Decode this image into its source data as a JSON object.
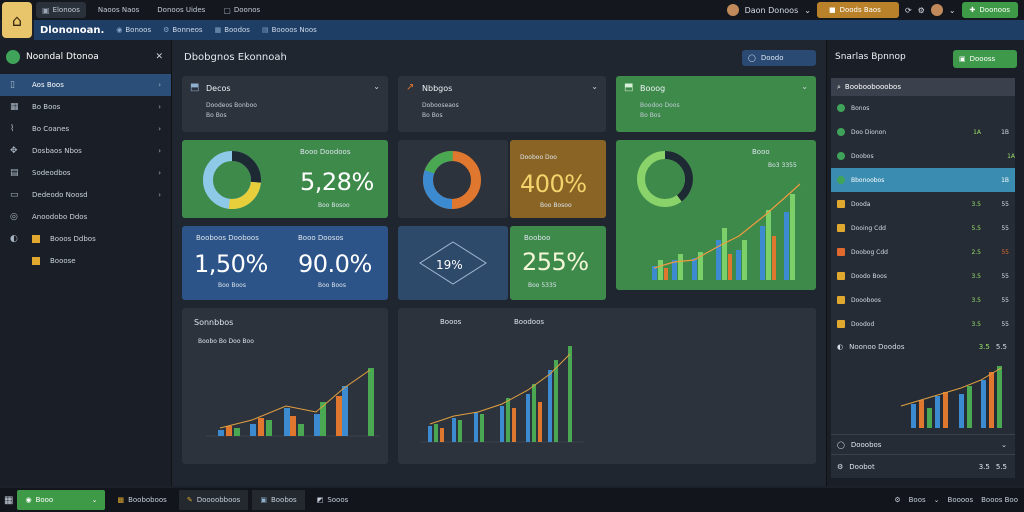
{
  "topbar": {
    "tabs": [
      {
        "label": "Elonoos",
        "icon": "window-icon"
      },
      {
        "label": "Naoos Naos",
        "icon": "doc-icon"
      },
      {
        "label": "Donoos Uides",
        "icon": "doc-icon"
      },
      {
        "label": "Doonos",
        "icon": "doc-icon"
      }
    ],
    "user": "Daon Donoos",
    "amber_label": "Doods Baos",
    "green_label": "Doonoos"
  },
  "header": {
    "brand": "Dlononoan.",
    "items": [
      "Bonoos",
      "Bonneos",
      "Boodos",
      "Boooos Noos"
    ]
  },
  "sidebar": {
    "title": "Noondal Dtonoa",
    "items": [
      {
        "label": "Aos Boos",
        "icon": "tablet-icon",
        "active": true
      },
      {
        "label": "Bo Boos",
        "icon": "grid-icon"
      },
      {
        "label": "Bo Coanes",
        "icon": "chart-icon"
      },
      {
        "label": "Dosbaos Nbos",
        "icon": "puzzle-icon"
      },
      {
        "label": "Sodeodbos",
        "icon": "doc-icon"
      },
      {
        "label": "Dedeodo Noosd",
        "icon": "folder-icon"
      },
      {
        "label": "Anoodobo Ddos",
        "icon": "settings-icon"
      },
      {
        "label": "Booos Ddbos",
        "icon": "globe-icon"
      },
      {
        "label": "Booose",
        "icon": ""
      }
    ]
  },
  "main": {
    "title": "Dbobgnos Ekonnoah",
    "button": "Doodo",
    "cards": {
      "c1": {
        "title": "Decos",
        "sub1": "Doodeos Bonboo",
        "sub2": "Bo Bos"
      },
      "c2": {
        "title": "Nbbgos",
        "sub1": "Dobooseaos",
        "sub2": "Bo Bos"
      },
      "c3": {
        "title": "Booog",
        "sub1": "Boodoo Doos",
        "sub2": "Bo Bos"
      },
      "k1": {
        "title": "Booo Doodoos",
        "value": "5,28%",
        "sub": "Boo Bosoo"
      },
      "k2": {
        "title": "Dooboo Doo",
        "value": "400%",
        "sub": "Boo Bosoo"
      },
      "k3": {
        "title": "Booo",
        "sub": "Bo3 3355"
      },
      "k4": {
        "title": "Booboos Dooboos",
        "value": "1,50%",
        "sub": "Boo Boos"
      },
      "k5": {
        "title": "Booo Doosos",
        "value": "90.0%",
        "sub": "Boo Boos"
      },
      "k6": {
        "value": "19%"
      },
      "k7": {
        "title": "Booboo",
        "value": "255%",
        "sub": "Boo 5335"
      },
      "p1": {
        "title": "Sonnbbos",
        "sub": "Boobo Bo Doo Boo"
      },
      "p2": {
        "label1": "Booos",
        "label2": "Boodoos"
      }
    }
  },
  "rpanel": {
    "title": "Snarlas Bpnnop",
    "button": "Doooss",
    "head": "Booboobooobos",
    "rows": [
      {
        "label": "Bonos",
        "v1": "",
        "v2": "",
        "color": "#3fa35a"
      },
      {
        "label": "Doo Dionon",
        "v1": "1A",
        "v2": "1B",
        "color": "#3fa35a"
      },
      {
        "label": "Doobos",
        "v1": "1A",
        "v2": "",
        "color": "#3fa35a"
      },
      {
        "label": "Bbonoobos",
        "v1": "",
        "v2": "1B",
        "color": "#3fa35a",
        "selected": true
      },
      {
        "label": "Dooda",
        "v1": "3.5",
        "v2": "55",
        "color": "#e0a82e"
      },
      {
        "label": "Dooing Cdd",
        "v1": "5.5",
        "v2": "55",
        "color": "#e0a82e"
      },
      {
        "label": "Doobog Cdd",
        "v1": "2.5",
        "v2": "55",
        "color": "#e06a2e"
      },
      {
        "label": "Doodo Boos",
        "v1": "3.5",
        "v2": "55",
        "color": "#e0a82e"
      },
      {
        "label": "Doooboos",
        "v1": "3.5",
        "v2": "55",
        "color": "#e0a82e"
      },
      {
        "label": "Doodod",
        "v1": "3.5",
        "v2": "55",
        "color": "#e0a82e"
      }
    ],
    "chart_head": "Noonoo Doodos",
    "chart_head_vals": [
      "3.5",
      "5.5"
    ],
    "bottom1": "Dooobos",
    "bottom2": "Doobot",
    "bottom2_vals": [
      "3.5",
      "5.5"
    ]
  },
  "taskbar": {
    "start": "Booo",
    "items": [
      "Booboboos",
      "Doooobboos",
      "Boobos",
      "Sooos"
    ],
    "right": [
      "Boos",
      "Boooos",
      "Booos Boo"
    ]
  }
}
